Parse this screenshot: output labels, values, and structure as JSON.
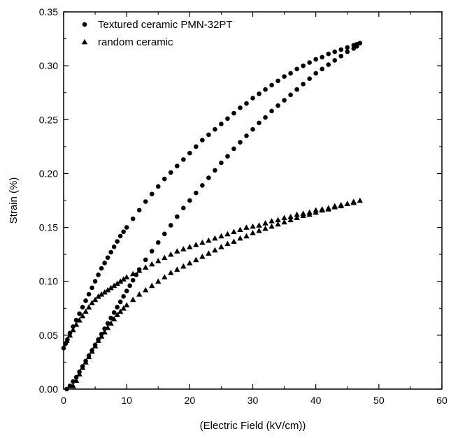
{
  "chart_data": {
    "type": "scatter",
    "xlabel": "(Electric Field (kV/cm))",
    "ylabel": "Strain (%)",
    "xlim": [
      0,
      60
    ],
    "ylim": [
      0,
      0.35
    ],
    "x_ticks": [
      "0",
      "10",
      "20",
      "30",
      "40",
      "50",
      "60"
    ],
    "y_ticks": [
      "0.00",
      "0.05",
      "0.10",
      "0.15",
      "0.20",
      "0.25",
      "0.30",
      "0.35"
    ],
    "grid": false,
    "legend_position": "top-left",
    "series": [
      {
        "name": "Textured ceramic PMN-32PT",
        "marker": "circle",
        "color": "#000000",
        "x": [
          0,
          0.3,
          0.6,
          1.0,
          1.5,
          2.0,
          2.5,
          3.0,
          3.5,
          4.0,
          4.5,
          5.0,
          5.5,
          6.0,
          6.5,
          7.0,
          7.5,
          8.0,
          8.5,
          9.0,
          9.5,
          10.0,
          11.0,
          12.0,
          13.0,
          14.0,
          15.0,
          16.0,
          17.0,
          18.0,
          19.0,
          20.0,
          21.0,
          22.0,
          23.0,
          24.0,
          25.0,
          26.0,
          27.0,
          28.0,
          29.0,
          30.0,
          31.0,
          32.0,
          33.0,
          34.0,
          35.0,
          36.0,
          37.0,
          38.0,
          39.0,
          40.0,
          41.0,
          42.0,
          43.0,
          44.0,
          45.0,
          46.0,
          46.5,
          47.0,
          46.5,
          46.0,
          45.0,
          44.0,
          43.0,
          42.0,
          41.0,
          40.0,
          39.0,
          38.0,
          37.0,
          36.0,
          35.0,
          34.0,
          33.0,
          32.0,
          31.0,
          30.0,
          29.0,
          28.0,
          27.0,
          26.0,
          25.0,
          24.0,
          23.0,
          22.0,
          21.0,
          20.0,
          19.0,
          18.0,
          17.0,
          16.0,
          15.0,
          14.0,
          13.0,
          12.0,
          11.5,
          11.0,
          10.5,
          10.0,
          9.5,
          9.0,
          8.5,
          8.0,
          7.5,
          7.0,
          6.5,
          6.0,
          5.5,
          5.0,
          4.5,
          4.0,
          3.5,
          3.0,
          2.5,
          2.0,
          1.5,
          1.0,
          0.5
        ],
        "y": [
          0.038,
          0.042,
          0.046,
          0.052,
          0.058,
          0.064,
          0.07,
          0.076,
          0.082,
          0.088,
          0.094,
          0.1,
          0.106,
          0.112,
          0.117,
          0.122,
          0.127,
          0.132,
          0.137,
          0.142,
          0.146,
          0.15,
          0.158,
          0.166,
          0.174,
          0.181,
          0.188,
          0.195,
          0.201,
          0.207,
          0.213,
          0.219,
          0.225,
          0.231,
          0.236,
          0.241,
          0.246,
          0.251,
          0.256,
          0.261,
          0.265,
          0.27,
          0.274,
          0.278,
          0.282,
          0.286,
          0.29,
          0.293,
          0.297,
          0.3,
          0.303,
          0.306,
          0.308,
          0.311,
          0.313,
          0.315,
          0.317,
          0.319,
          0.32,
          0.321,
          0.318,
          0.316,
          0.313,
          0.309,
          0.305,
          0.301,
          0.297,
          0.293,
          0.288,
          0.283,
          0.278,
          0.273,
          0.268,
          0.263,
          0.258,
          0.252,
          0.247,
          0.241,
          0.235,
          0.229,
          0.223,
          0.216,
          0.21,
          0.203,
          0.196,
          0.189,
          0.182,
          0.175,
          0.168,
          0.16,
          0.152,
          0.144,
          0.136,
          0.128,
          0.12,
          0.111,
          0.106,
          0.101,
          0.096,
          0.091,
          0.086,
          0.081,
          0.076,
          0.071,
          0.066,
          0.061,
          0.056,
          0.051,
          0.046,
          0.041,
          0.036,
          0.031,
          0.026,
          0.021,
          0.016,
          0.011,
          0.007,
          0.003,
          0.0
        ]
      },
      {
        "name": "random ceramic",
        "marker": "triangle",
        "color": "#000000",
        "x": [
          0.5,
          1.0,
          1.5,
          2.0,
          2.5,
          3.0,
          3.5,
          4.0,
          4.5,
          5.0,
          5.5,
          6.0,
          6.5,
          7.0,
          7.5,
          8.0,
          8.5,
          9.0,
          9.5,
          10.0,
          11.0,
          12.0,
          13.0,
          14.0,
          15.0,
          16.0,
          17.0,
          18.0,
          19.0,
          20.0,
          21.0,
          22.0,
          23.0,
          24.0,
          25.0,
          26.0,
          27.0,
          28.0,
          29.0,
          30.0,
          31.0,
          32.0,
          33.0,
          34.0,
          35.0,
          36.0,
          37.0,
          38.0,
          39.0,
          40.0,
          41.0,
          42.0,
          43.0,
          44.0,
          45.0,
          46.0,
          47.0,
          46.0,
          45.0,
          44.0,
          43.0,
          42.0,
          41.0,
          40.0,
          39.0,
          38.0,
          37.0,
          36.0,
          35.0,
          34.0,
          33.0,
          32.0,
          31.0,
          30.0,
          29.0,
          28.0,
          27.0,
          26.0,
          25.0,
          24.0,
          23.0,
          22.0,
          21.0,
          20.0,
          19.0,
          18.0,
          17.0,
          16.0,
          15.0,
          14.0,
          13.0,
          12.0,
          11.0,
          10.0,
          9.5,
          9.0,
          8.5,
          8.0,
          7.5,
          7.0,
          6.5,
          6.0,
          5.5,
          5.0,
          4.5,
          4.0,
          3.5,
          3.0,
          2.5,
          2.0,
          1.5
        ],
        "y": [
          0.045,
          0.05,
          0.055,
          0.06,
          0.064,
          0.068,
          0.072,
          0.076,
          0.08,
          0.083,
          0.086,
          0.088,
          0.09,
          0.092,
          0.094,
          0.096,
          0.098,
          0.1,
          0.102,
          0.104,
          0.107,
          0.11,
          0.113,
          0.116,
          0.119,
          0.122,
          0.125,
          0.128,
          0.13,
          0.132,
          0.134,
          0.136,
          0.138,
          0.14,
          0.142,
          0.144,
          0.146,
          0.148,
          0.15,
          0.151,
          0.152,
          0.154,
          0.156,
          0.157,
          0.159,
          0.16,
          0.162,
          0.163,
          0.164,
          0.166,
          0.167,
          0.168,
          0.17,
          0.171,
          0.172,
          0.174,
          0.175,
          0.173,
          0.172,
          0.17,
          0.169,
          0.167,
          0.166,
          0.164,
          0.162,
          0.161,
          0.159,
          0.157,
          0.155,
          0.153,
          0.151,
          0.149,
          0.147,
          0.145,
          0.142,
          0.14,
          0.137,
          0.135,
          0.132,
          0.129,
          0.126,
          0.123,
          0.12,
          0.117,
          0.114,
          0.111,
          0.108,
          0.104,
          0.1,
          0.096,
          0.092,
          0.088,
          0.083,
          0.078,
          0.075,
          0.072,
          0.069,
          0.065,
          0.061,
          0.057,
          0.053,
          0.049,
          0.045,
          0.04,
          0.035,
          0.03,
          0.025,
          0.02,
          0.014,
          0.008,
          0.003
        ]
      }
    ]
  }
}
